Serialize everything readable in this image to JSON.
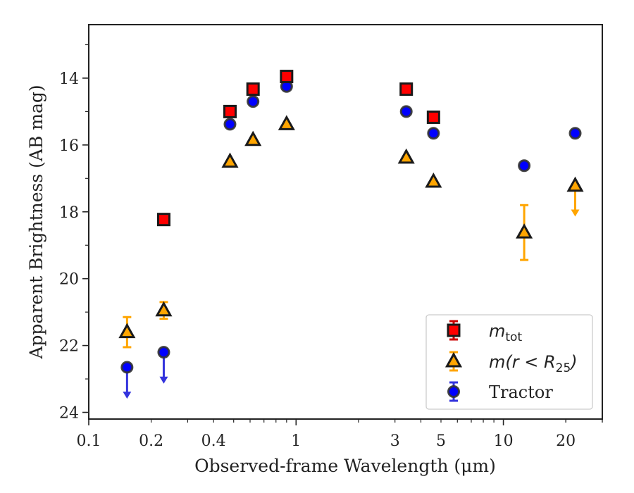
{
  "chart_data": {
    "type": "scatter",
    "title": "",
    "xlabel": "Observed-frame Wavelength (μm)",
    "ylabel": "Apparent Brightness (AB mag)",
    "xscale": "log",
    "yinverted": true,
    "xlim": [
      0.1,
      30
    ],
    "ylim": [
      24.2,
      12.4
    ],
    "xticks": [
      {
        "value": 0.1,
        "label": "0.1"
      },
      {
        "value": 0.2,
        "label": "0.2"
      },
      {
        "value": 0.4,
        "label": "0.4"
      },
      {
        "value": 1,
        "label": "1"
      },
      {
        "value": 3,
        "label": "3"
      },
      {
        "value": 5,
        "label": "5"
      },
      {
        "value": 10,
        "label": "10"
      },
      {
        "value": 20,
        "label": "20"
      }
    ],
    "yticks": [
      {
        "value": 14,
        "label": "14"
      },
      {
        "value": 16,
        "label": "16"
      },
      {
        "value": 18,
        "label": "18"
      },
      {
        "value": 20,
        "label": "20"
      },
      {
        "value": 22,
        "label": "22"
      },
      {
        "value": 24,
        "label": "24"
      }
    ],
    "legend_position": "bottom-right",
    "grid": false,
    "series": [
      {
        "name": "m_tot",
        "legend_main": "m",
        "legend_sub": "tot",
        "marker": "square",
        "color": "#ff0000",
        "errcolor": "#cc0000",
        "points": [
          {
            "x": 0.23,
            "y": 18.23
          },
          {
            "x": 0.48,
            "y": 15.0
          },
          {
            "x": 0.62,
            "y": 14.33
          },
          {
            "x": 0.9,
            "y": 13.95
          },
          {
            "x": 3.4,
            "y": 14.33
          },
          {
            "x": 4.6,
            "y": 15.17
          }
        ]
      },
      {
        "name": "m(r < R25)",
        "legend_main": "m(r < R",
        "legend_sub": "25",
        "legend_tail": ")",
        "marker": "triangle",
        "color": "#ffa500",
        "errcolor": "#ffa500",
        "points": [
          {
            "x": 0.153,
            "y": 21.6,
            "yerr": 0.45
          },
          {
            "x": 0.23,
            "y": 20.95,
            "yerr": 0.25
          },
          {
            "x": 0.48,
            "y": 16.5
          },
          {
            "x": 0.62,
            "y": 15.85
          },
          {
            "x": 0.9,
            "y": 15.38
          },
          {
            "x": 3.4,
            "y": 16.38
          },
          {
            "x": 4.6,
            "y": 17.1
          },
          {
            "x": 12.6,
            "y": 18.62,
            "yerr": 0.82
          },
          {
            "x": 22.2,
            "y": 17.22,
            "upper_limit_to": 18.1
          }
        ]
      },
      {
        "name": "Tractor",
        "legend_main": "Tractor",
        "marker": "circle",
        "color": "#0000ff",
        "errcolor": "#3333dd",
        "points": [
          {
            "x": 0.153,
            "y": 22.65,
            "upper_limit_to": 23.55
          },
          {
            "x": 0.23,
            "y": 22.2,
            "upper_limit_to": 23.1
          },
          {
            "x": 0.48,
            "y": 15.38
          },
          {
            "x": 0.62,
            "y": 14.7
          },
          {
            "x": 0.9,
            "y": 14.25
          },
          {
            "x": 3.4,
            "y": 15.0
          },
          {
            "x": 4.6,
            "y": 15.65
          },
          {
            "x": 12.6,
            "y": 16.62
          },
          {
            "x": 22.2,
            "y": 15.65
          }
        ]
      }
    ]
  }
}
